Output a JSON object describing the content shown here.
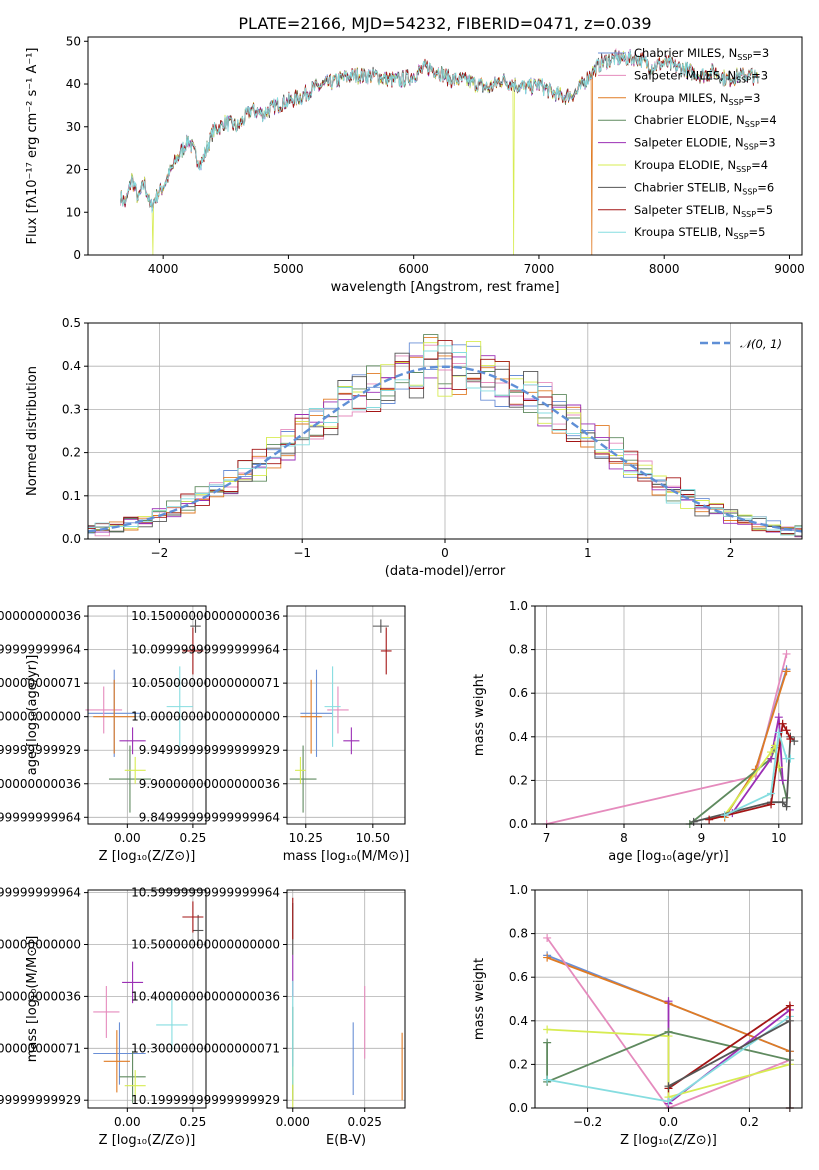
{
  "figure": {
    "title": "PLATE=2166, MJD=54232, FIBERID=0471, z=0.039"
  },
  "colors": {
    "Chabrier MILES": "#6a8fd6",
    "Salpeter MILES": "#e58bbd",
    "Kroupa MILES": "#e07b24",
    "Chabrier ELODIE": "#5f8a5f",
    "Salpeter ELODIE": "#9b2fb5",
    "Kroupa ELODIE": "#d7ec52",
    "Chabrier STELIB": "#555555",
    "Salpeter STELIB": "#a31515",
    "Kroupa STELIB": "#86dde0",
    "normal": "#5f8fd6"
  },
  "chart_data": [
    {
      "id": "spectrum",
      "type": "line",
      "title": "PLATE=2166, MJD=54232, FIBERID=0471, z=0.039",
      "xlabel": "wavelength [Angstrom, rest frame]",
      "ylabel": "Flux [fλ10⁻¹⁷ erg cm⁻² s⁻¹ A⁻¹]",
      "xlim": [
        3400,
        9100
      ],
      "ylim": [
        0,
        51
      ],
      "xticks": [
        4000,
        5000,
        6000,
        7000,
        8000,
        9000
      ],
      "yticks": [
        0,
        10,
        20,
        30,
        40,
        50
      ],
      "grid": false,
      "legend_position": "top-right",
      "legend": [
        "Chabrier MILES, N_SSP=3",
        "Salpeter MILES, N_SSP=3",
        "Kroupa MILES, N_SSP=3",
        "Chabrier ELODIE, N_SSP=4",
        "Salpeter ELODIE, N_SSP=3",
        "Kroupa ELODIE, N_SSP=4",
        "Chabrier STELIB, N_SSP=6",
        "Salpeter STELIB, N_SSP=5",
        "Kroupa STELIB, N_SSP=5"
      ],
      "continuum": {
        "x": [
          3650,
          3700,
          3750,
          3800,
          3850,
          3900,
          3950,
          4000,
          4100,
          4200,
          4300,
          4400,
          4500,
          4600,
          4700,
          4800,
          4900,
          5000,
          5100,
          5200,
          5300,
          5400,
          5500,
          5600,
          5700,
          5800,
          5900,
          6000,
          6100,
          6200,
          6300,
          6400,
          6500,
          6600,
          6700,
          6800,
          6900,
          7000,
          7100,
          7200,
          7300,
          7400,
          7500,
          7600,
          7700,
          7800,
          7900,
          8000,
          8100,
          8200,
          8300,
          8400,
          8500,
          8600,
          8700,
          8750
        ],
        "y": [
          14,
          12,
          18,
          13,
          17,
          11,
          14,
          16,
          22,
          27,
          21,
          29,
          31,
          30,
          34,
          33,
          35,
          36,
          37,
          39,
          40,
          41,
          42,
          42,
          42,
          41,
          41,
          42,
          44,
          43,
          41,
          41,
          40,
          39,
          41,
          40,
          39,
          40,
          38,
          37,
          38,
          42,
          45,
          46,
          46,
          46,
          44,
          45,
          44,
          43,
          42,
          43,
          41,
          42,
          42,
          41
        ]
      },
      "dropouts": [
        {
          "x": 3920,
          "series": "Kroupa ELODIE"
        },
        {
          "x": 6800,
          "series": "Kroupa ELODIE"
        },
        {
          "x": 7420,
          "series": "Kroupa MILES"
        }
      ]
    },
    {
      "id": "residuals",
      "type": "step-histogram",
      "xlabel": "(data-model)/error",
      "ylabel": "Normed distribution",
      "xlim": [
        -2.5,
        2.5
      ],
      "ylim": [
        0,
        0.5
      ],
      "xticks": [
        -2,
        -1,
        0,
        1,
        2
      ],
      "yticks": [
        0.0,
        0.1,
        0.2,
        0.3,
        0.4,
        0.5
      ],
      "grid": true,
      "legend_position": "top-right",
      "legend": [
        "𝒩(0, 1)"
      ],
      "bin_width": 0.1
    },
    {
      "id": "age_vs_Z",
      "type": "errorbar",
      "xlabel": "Z [log₁₀(Z/Z⊙)]",
      "ylabel": "age  [log₁₀(age/yr)]",
      "xlim": [
        -0.15,
        0.3
      ],
      "ylim": [
        9.84,
        10.165
      ],
      "xticks": [
        0.0,
        0.25
      ],
      "yticks": [
        9.85,
        9.9,
        9.95,
        10.0,
        10.05,
        10.1,
        10.15
      ],
      "grid": true,
      "points": [
        {
          "series": "Chabrier MILES",
          "x": -0.05,
          "y": 10.005,
          "xerr": 0.1,
          "yerr": 0.065
        },
        {
          "series": "Salpeter MILES",
          "x": -0.09,
          "y": 10.01,
          "xerr": 0.07,
          "yerr": 0.035
        },
        {
          "series": "Kroupa MILES",
          "x": -0.05,
          "y": 10.0,
          "xerr": 0.08,
          "yerr": 0.055
        },
        {
          "series": "Chabrier ELODIE",
          "x": 0.01,
          "y": 9.907,
          "xerr": 0.08,
          "yerr": 0.05
        },
        {
          "series": "Salpeter ELODIE",
          "x": 0.02,
          "y": 9.964,
          "xerr": 0.05,
          "yerr": 0.02
        },
        {
          "series": "Kroupa ELODIE",
          "x": 0.03,
          "y": 9.92,
          "xerr": 0.04,
          "yerr": 0.02
        },
        {
          "series": "Chabrier STELIB",
          "x": 0.26,
          "y": 10.135,
          "xerr": 0.02,
          "yerr": 0.01
        },
        {
          "series": "Salpeter STELIB",
          "x": 0.25,
          "y": 10.098,
          "xerr": 0.04,
          "yerr": 0.035
        },
        {
          "series": "Kroupa STELIB",
          "x": 0.2,
          "y": 10.015,
          "xerr": 0.05,
          "yerr": 0.06
        }
      ]
    },
    {
      "id": "age_vs_mass",
      "type": "errorbar",
      "xlabel": "mass [log₁₀(M/M⊙)]",
      "ylabel": "",
      "xlim": [
        10.18,
        10.62
      ],
      "ylim": [
        9.84,
        10.165
      ],
      "xticks": [
        10.25,
        10.5
      ],
      "yticks": [
        9.85,
        9.9,
        9.95,
        10.0,
        10.05,
        10.1,
        10.15
      ],
      "grid": true,
      "points": [
        {
          "series": "Chabrier MILES",
          "x": 10.29,
          "y": 10.005,
          "xerr": 0.06,
          "yerr": 0.065
        },
        {
          "series": "Salpeter MILES",
          "x": 10.37,
          "y": 10.01,
          "xerr": 0.04,
          "yerr": 0.035
        },
        {
          "series": "Kroupa MILES",
          "x": 10.27,
          "y": 10.0,
          "xerr": 0.04,
          "yerr": 0.055
        },
        {
          "series": "Chabrier ELODIE",
          "x": 10.24,
          "y": 9.907,
          "xerr": 0.05,
          "yerr": 0.05
        },
        {
          "series": "Salpeter ELODIE",
          "x": 10.42,
          "y": 9.964,
          "xerr": 0.03,
          "yerr": 0.02
        },
        {
          "series": "Kroupa ELODIE",
          "x": 10.23,
          "y": 9.92,
          "xerr": 0.02,
          "yerr": 0.02
        },
        {
          "series": "Chabrier STELIB",
          "x": 10.53,
          "y": 10.135,
          "xerr": 0.03,
          "yerr": 0.01
        },
        {
          "series": "Salpeter STELIB",
          "x": 10.55,
          "y": 10.098,
          "xerr": 0.02,
          "yerr": 0.035
        },
        {
          "series": "Kroupa STELIB",
          "x": 10.35,
          "y": 10.015,
          "xerr": 0.03,
          "yerr": 0.06
        }
      ]
    },
    {
      "id": "massweight_vs_age",
      "type": "line",
      "xlabel": "age  [log₁₀(age/yr)]",
      "ylabel": "mass weight",
      "xlim": [
        6.85,
        10.3
      ],
      "ylim": [
        0,
        1.0
      ],
      "xticks": [
        7,
        8,
        9,
        10
      ],
      "yticks": [
        0.0,
        0.2,
        0.4,
        0.6,
        0.8,
        1.0
      ],
      "grid": true,
      "series": [
        {
          "series": "Salpeter MILES",
          "x": [
            7.0,
            9.7,
            10.1
          ],
          "y": [
            0.0,
            0.22,
            0.78
          ]
        },
        {
          "series": "Chabrier MILES",
          "x": [
            9.3,
            9.7,
            10.1
          ],
          "y": [
            0.03,
            0.25,
            0.71
          ]
        },
        {
          "series": "Kroupa MILES",
          "x": [
            9.3,
            9.7,
            10.1
          ],
          "y": [
            0.03,
            0.25,
            0.7
          ]
        },
        {
          "series": "Chabrier ELODIE",
          "x": [
            8.85,
            9.9,
            9.95,
            10.1
          ],
          "y": [
            0.0,
            0.3,
            0.35,
            0.12
          ]
        },
        {
          "series": "Salpeter ELODIE",
          "x": [
            9.4,
            9.9,
            10.0,
            10.05
          ],
          "y": [
            0.05,
            0.3,
            0.49,
            0.2
          ]
        },
        {
          "series": "Kroupa ELODIE",
          "x": [
            9.3,
            9.9,
            9.95,
            10.0
          ],
          "y": [
            0.04,
            0.33,
            0.36,
            0.26
          ]
        },
        {
          "series": "Chabrier STELIB",
          "x": [
            8.9,
            9.9,
            10.05,
            10.1,
            10.15,
            10.2
          ],
          "y": [
            0.01,
            0.1,
            0.1,
            0.08,
            0.4,
            0.38
          ]
        },
        {
          "series": "Salpeter STELIB",
          "x": [
            9.1,
            9.9,
            10.05,
            10.1,
            10.15
          ],
          "y": [
            0.02,
            0.09,
            0.46,
            0.43,
            0.39
          ]
        },
        {
          "series": "Kroupa STELIB",
          "x": [
            9.3,
            9.9,
            10.0,
            10.1,
            10.15
          ],
          "y": [
            0.04,
            0.14,
            0.42,
            0.3,
            0.3
          ]
        }
      ]
    },
    {
      "id": "mass_vs_Z",
      "type": "errorbar",
      "xlabel": "Z [log₁₀(Z/Z⊙)]",
      "ylabel": "mass [log₁₀(M/M⊙)]",
      "xlim": [
        -0.15,
        0.3
      ],
      "ylim": [
        10.185,
        10.605
      ],
      "xticks": [
        0.0,
        0.25
      ],
      "yticks": [
        10.2,
        10.3,
        10.4,
        10.5,
        10.6
      ],
      "grid": true,
      "points": [
        {
          "series": "Chabrier MILES",
          "x": -0.03,
          "y": 10.29,
          "xerr": 0.1,
          "yerr": 0.06
        },
        {
          "series": "Salpeter MILES",
          "x": -0.08,
          "y": 10.37,
          "xerr": 0.05,
          "yerr": 0.05
        },
        {
          "series": "Kroupa MILES",
          "x": -0.04,
          "y": 10.275,
          "xerr": 0.05,
          "yerr": 0.06
        },
        {
          "series": "Chabrier ELODIE",
          "x": 0.02,
          "y": 10.245,
          "xerr": 0.05,
          "yerr": 0.05
        },
        {
          "series": "Salpeter ELODIE",
          "x": 0.02,
          "y": 10.427,
          "xerr": 0.04,
          "yerr": 0.04
        },
        {
          "series": "Kroupa ELODIE",
          "x": 0.03,
          "y": 10.228,
          "xerr": 0.04,
          "yerr": 0.03
        },
        {
          "series": "Chabrier STELIB",
          "x": 0.27,
          "y": 10.527,
          "xerr": 0.02,
          "yerr": 0.03
        },
        {
          "series": "Salpeter STELIB",
          "x": 0.25,
          "y": 10.553,
          "xerr": 0.04,
          "yerr": 0.03
        },
        {
          "series": "Kroupa STELIB",
          "x": 0.17,
          "y": 10.345,
          "xerr": 0.06,
          "yerr": 0.05
        }
      ]
    },
    {
      "id": "mass_vs_ebv",
      "type": "errorbar",
      "xlabel": "E(B-V)",
      "ylabel": "",
      "xlim": [
        -0.002,
        0.039
      ],
      "ylim": [
        10.185,
        10.605
      ],
      "xticks": [
        0.0,
        0.025
      ],
      "yticks": [
        10.2,
        10.3,
        10.4,
        10.5,
        10.6
      ],
      "grid": true,
      "points": [
        {
          "series": "Chabrier MILES",
          "x": 0.021,
          "y": 10.28,
          "xerr": 0,
          "yerr": 0.07
        },
        {
          "series": "Salpeter MILES",
          "x": 0.025,
          "y": 10.35,
          "xerr": 0,
          "yerr": 0.07
        },
        {
          "series": "Kroupa MILES",
          "x": 0.038,
          "y": 10.265,
          "xerr": 0,
          "yerr": 0.065
        },
        {
          "series": "Chabrier ELODIE",
          "x": 0.0,
          "y": 10.29,
          "xerr": 0,
          "yerr": 0.09
        },
        {
          "series": "Salpeter ELODIE",
          "x": 0.0,
          "y": 10.44,
          "xerr": 0,
          "yerr": 0.04
        },
        {
          "series": "Kroupa ELODIE",
          "x": 0.0,
          "y": 10.225,
          "xerr": 0,
          "yerr": 0.04
        },
        {
          "series": "Chabrier STELIB",
          "x": 0.0,
          "y": 10.53,
          "xerr": 0,
          "yerr": 0.05
        },
        {
          "series": "Salpeter STELIB",
          "x": 0.0,
          "y": 10.55,
          "xerr": 0,
          "yerr": 0.04
        },
        {
          "series": "Kroupa STELIB",
          "x": 0.0,
          "y": 10.33,
          "xerr": 0,
          "yerr": 0.1
        }
      ]
    },
    {
      "id": "massweight_vs_Z",
      "type": "line",
      "xlabel": "Z [log₁₀(Z/Z⊙)]",
      "ylabel": "mass weight",
      "xlim": [
        -0.33,
        0.33
      ],
      "ylim": [
        0,
        1.0
      ],
      "xticks": [
        -0.2,
        0.0,
        0.2
      ],
      "yticks": [
        0.0,
        0.2,
        0.4,
        0.6,
        0.8,
        1.0
      ],
      "grid": true,
      "series": [
        {
          "series": "Chabrier MILES",
          "x": [
            -0.3,
            0.0,
            0.3
          ],
          "y": [
            0.7,
            0.48,
            0.26
          ]
        },
        {
          "series": "Kroupa MILES",
          "x": [
            -0.3,
            0.0,
            0.3
          ],
          "y": [
            0.69,
            0.48,
            0.26
          ]
        },
        {
          "series": "Salpeter MILES",
          "x": [
            -0.3,
            0.0,
            0.3
          ],
          "y": [
            0.78,
            0.0,
            0.22
          ]
        },
        {
          "series": "Salpeter ELODIE",
          "x": [
            0.0,
            0.0,
            0.3
          ],
          "y": [
            0.49,
            0.02,
            0.45
          ]
        },
        {
          "series": "Kroupa ELODIE",
          "x": [
            -0.3,
            0.0,
            0.0,
            0.3
          ],
          "y": [
            0.36,
            0.33,
            0.05,
            0.2
          ]
        },
        {
          "series": "Chabrier ELODIE",
          "x": [
            -0.3,
            -0.3,
            0.0,
            0.3
          ],
          "y": [
            0.3,
            0.12,
            0.35,
            0.22
          ]
        },
        {
          "series": "Kroupa STELIB",
          "x": [
            -0.3,
            0.0,
            0.3
          ],
          "y": [
            0.13,
            0.03,
            0.42
          ]
        },
        {
          "series": "Salpeter STELIB",
          "x": [
            0.0,
            0.3,
            0.3
          ],
          "y": [
            0.09,
            0.47,
            0.0
          ]
        },
        {
          "series": "Chabrier STELIB",
          "x": [
            0.0,
            0.3,
            0.3
          ],
          "y": [
            0.1,
            0.4,
            0.0
          ]
        }
      ]
    }
  ]
}
